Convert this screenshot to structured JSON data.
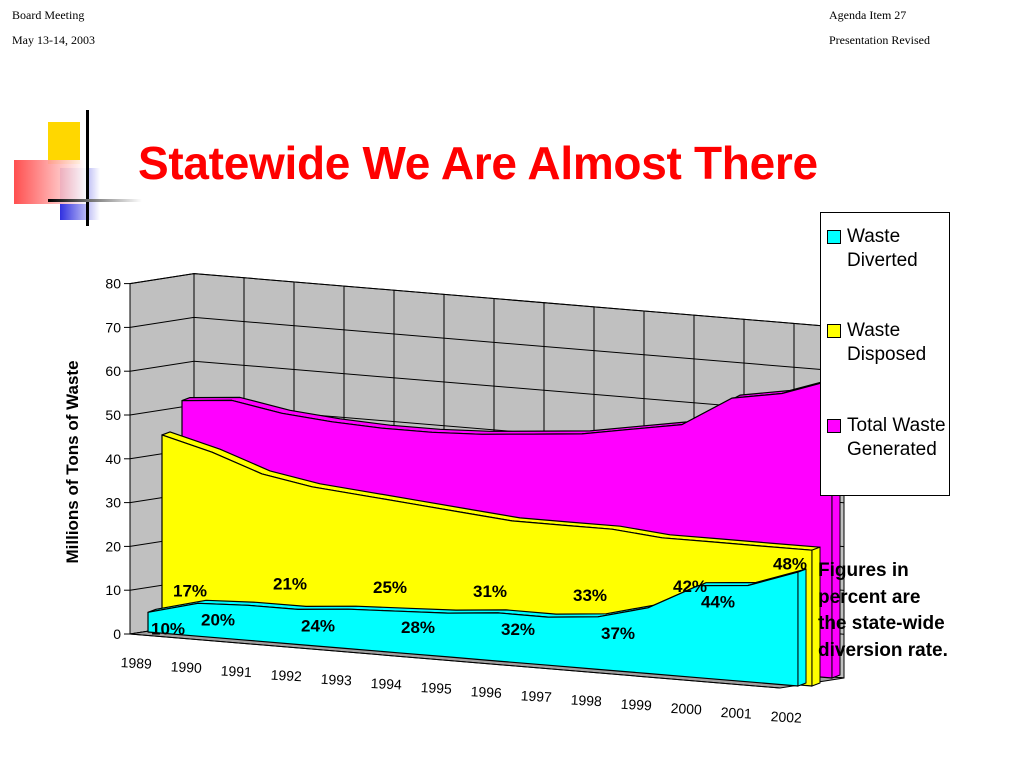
{
  "header": {
    "left_line1": "Board Meeting",
    "left_line2": "May 13-14, 2003",
    "right_line1": "Agenda Item 27",
    "right_line2": "Presentation Revised"
  },
  "slide": {
    "title": "Statewide We Are Almost There",
    "note": "Figures in percent are the state-wide diversion rate."
  },
  "colors": {
    "title": "#ff0000",
    "diverted": "#00ffff",
    "disposed": "#ffff00",
    "generated": "#ff00ff",
    "wall": "#c0c0c0"
  },
  "chart_data": {
    "type": "area",
    "x": [
      "1989",
      "1990",
      "1991",
      "1992",
      "1993",
      "1994",
      "1995",
      "1996",
      "1997",
      "1998",
      "1999",
      "2000",
      "2001",
      "2002"
    ],
    "ylabel": "Millions of Tons of Waste",
    "ylim": [
      0,
      80
    ],
    "yticks": [
      "0",
      "10",
      "20",
      "30",
      "40",
      "50",
      "60",
      "70",
      "80"
    ],
    "grid": true,
    "legend_position": "right",
    "series": [
      {
        "name": "Waste Diverted",
        "color": "#00ffff",
        "values": [
          4.5,
          7.5,
          8,
          8,
          9,
          9.5,
          10,
          11,
          11,
          12,
          15,
          21,
          22,
          26
        ]
      },
      {
        "name": "Waste Disposed",
        "color": "#ffff00",
        "values": [
          45,
          42,
          38,
          36,
          35,
          34,
          33,
          32,
          32,
          32,
          31,
          31,
          31,
          31
        ]
      },
      {
        "name": "Total Waste Generated",
        "color": "#ff00ff",
        "values": [
          51,
          52,
          50,
          49,
          48.5,
          48.5,
          49,
          50,
          51,
          53,
          55,
          62,
          64,
          68
        ]
      }
    ],
    "annotations": {
      "front": [
        {
          "year": "1989",
          "text": "10%"
        },
        {
          "year": "1990",
          "text": "20%"
        },
        {
          "year": "1992",
          "text": "24%"
        },
        {
          "year": "1994",
          "text": "28%"
        },
        {
          "year": "1996",
          "text": "32%"
        },
        {
          "year": "1998",
          "text": "37%"
        },
        {
          "year": "2000",
          "text": "44%"
        }
      ],
      "back": [
        {
          "year": "1989",
          "text": "17%"
        },
        {
          "year": "1991",
          "text": "21%"
        },
        {
          "year": "1993",
          "text": "25%"
        },
        {
          "year": "1995",
          "text": "31%"
        },
        {
          "year": "1997",
          "text": "33%"
        },
        {
          "year": "1999",
          "text": "42%"
        },
        {
          "year": "2001",
          "text": "48%"
        }
      ]
    }
  }
}
